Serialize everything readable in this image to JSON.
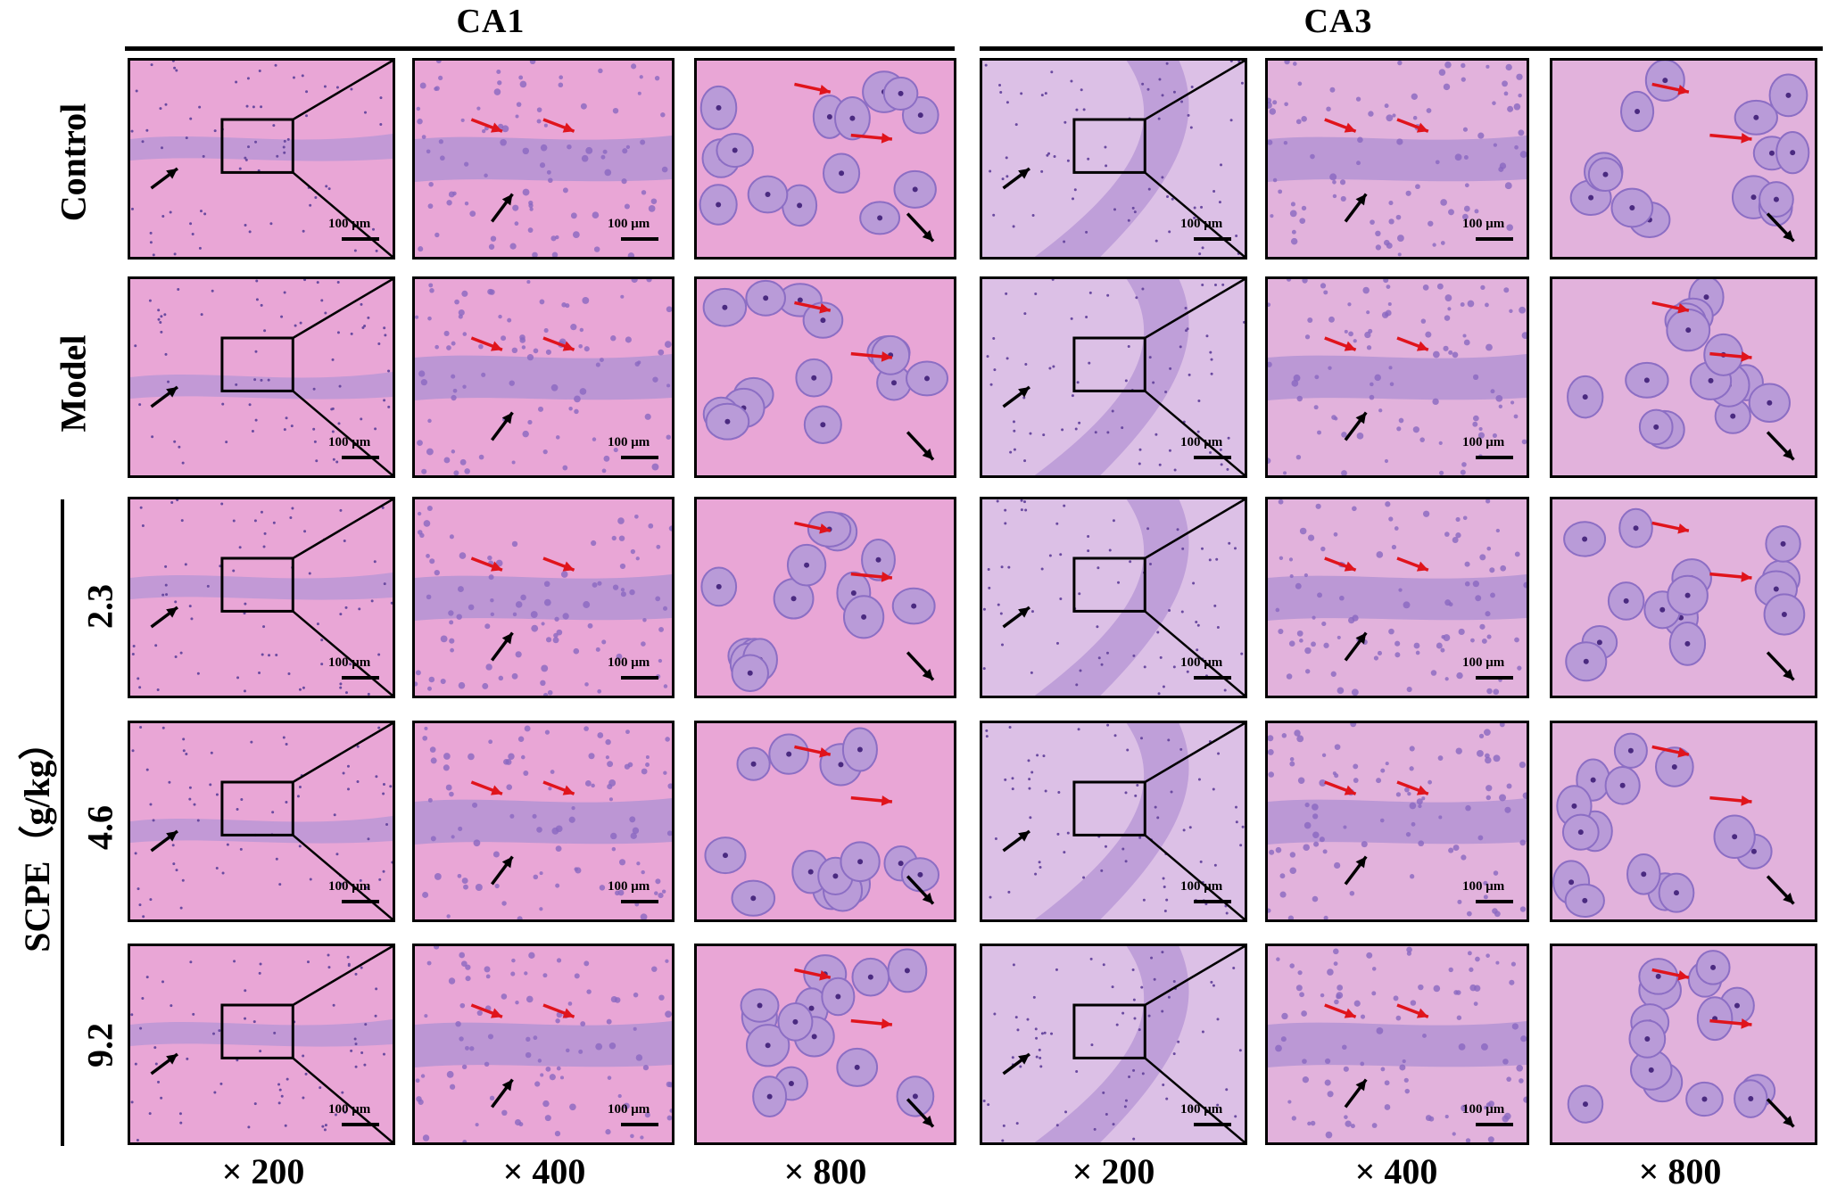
{
  "regions": [
    "CA1",
    "CA3"
  ],
  "rows": [
    "Control",
    "Model",
    "2.3",
    "4.6",
    "9.2"
  ],
  "group_label": "SCPE（g/kg）",
  "magnifications": [
    "× 200",
    "× 400",
    "× 800",
    "× 200",
    "× 400",
    "× 800"
  ],
  "scale_bar_label": "100 μm",
  "colors": {
    "stain_pink": "#e8a0d0",
    "nuclei_purple": "#9a78c8",
    "arrow_red": "#e0141c",
    "arrow_black": "#000000"
  }
}
